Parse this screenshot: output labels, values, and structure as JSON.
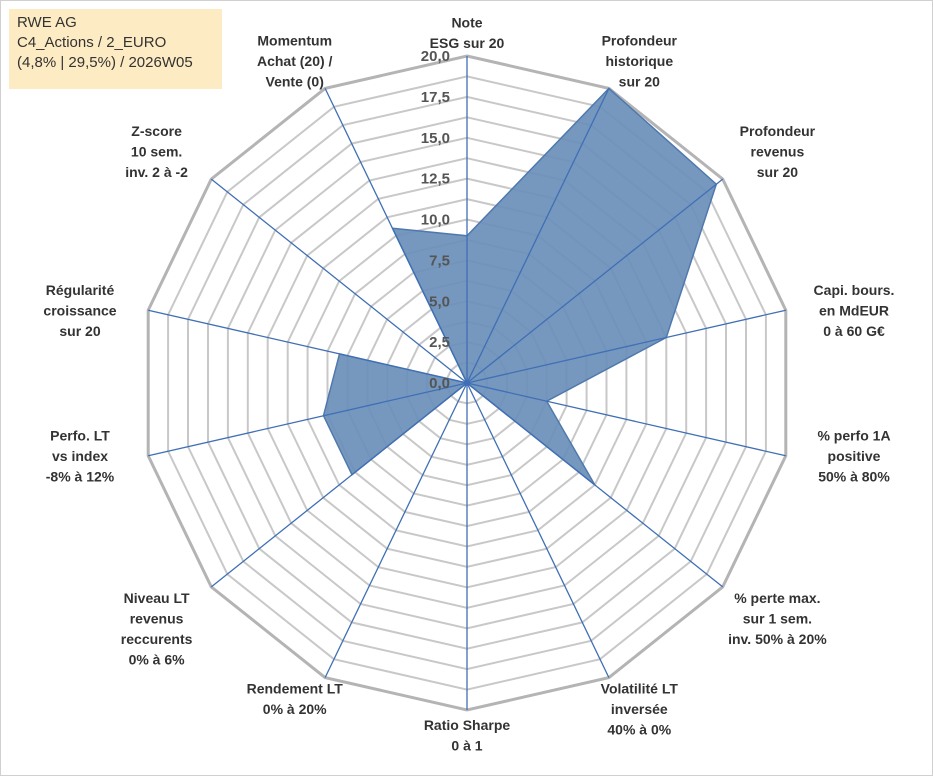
{
  "title_box": {
    "line1": "RWE AG",
    "line2": "C4_Actions / 2_EURO",
    "line3": "(4,8% | 29,5%) / 2026W05"
  },
  "chart_data": {
    "type": "radar",
    "rlim": [
      0,
      20
    ],
    "ticks": [
      "0,0",
      "2,5",
      "5,0",
      "7,5",
      "10,0",
      "12,5",
      "15,0",
      "17,5",
      "20,0"
    ],
    "categories": [
      [
        "Note",
        "ESG sur 20"
      ],
      [
        "Profondeur",
        "historique",
        "sur 20"
      ],
      [
        "Profondeur",
        "revenus",
        "sur 20"
      ],
      [
        "Capi. bours.",
        "en MdEUR",
        "0 à 60 G€"
      ],
      [
        "% perfo 1A",
        "positive",
        "50% à 80%"
      ],
      [
        "% perte max.",
        "sur 1 sem.",
        "inv. 50% à 20%"
      ],
      [
        "Volatilité LT",
        "inversée",
        "40% à 0%"
      ],
      [
        "Ratio Sharpe",
        "0 à 1"
      ],
      [
        "Rendement LT",
        "0% à 20%"
      ],
      [
        "Niveau LT",
        "revenus",
        "reccurents",
        "0% à 6%"
      ],
      [
        "Perfo. LT",
        "vs index",
        "-8% à 12%"
      ],
      [
        "Régularité",
        "croissance",
        "sur 20"
      ],
      [
        "Z-score",
        "10 sem.",
        "inv. 2 à -2"
      ],
      [
        "Momentum",
        "Achat (20) /",
        "Vente (0)"
      ]
    ],
    "values": [
      9.0,
      20.0,
      19.5,
      12.5,
      5.0,
      10.0,
      0.0,
      0.0,
      0.0,
      9.0,
      9.0,
      8.0,
      0.0,
      10.5
    ],
    "series_color": "#6a8fba",
    "series_edge": "#4f79ad",
    "spoke_color": "#3f6fb5",
    "grid_color": "#c8c8c8",
    "grid_outer_color": "#b4b4b4"
  }
}
